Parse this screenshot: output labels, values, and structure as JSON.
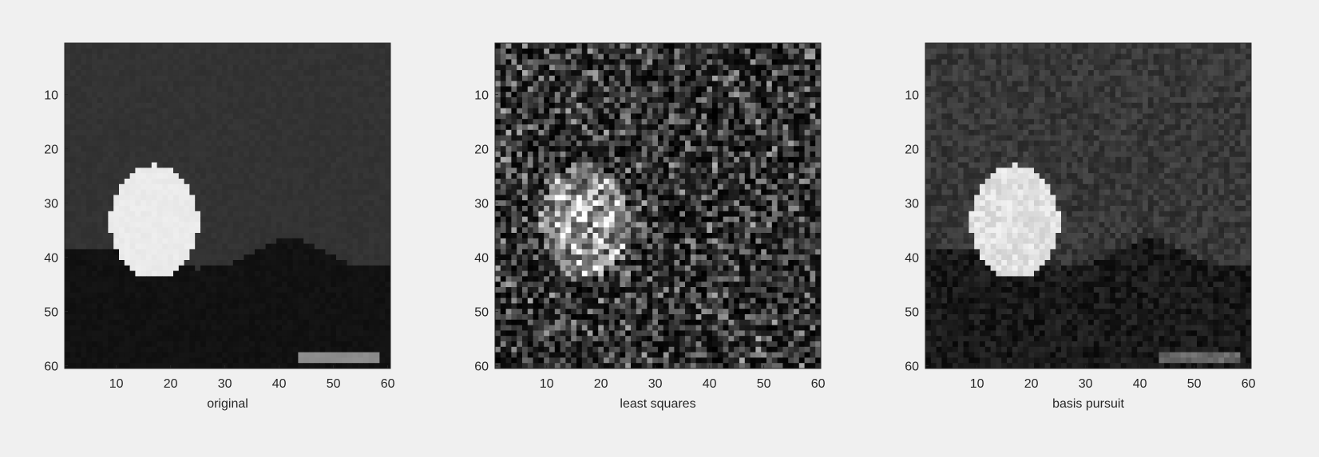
{
  "chart_data": [
    {
      "type": "heatmap",
      "xlabel": "original",
      "colormap": "gray",
      "noise": "low",
      "xlim": [
        0.5,
        60.5
      ],
      "ylim": [
        0.5,
        60.5
      ],
      "yreversed": true,
      "xticks": [
        10,
        20,
        30,
        40,
        50,
        60
      ],
      "yticks": [
        10,
        20,
        30,
        40,
        50,
        60
      ],
      "scene": {
        "background": 0.2,
        "ground": 0.07,
        "moon": 0.92,
        "bar": 0.55
      }
    },
    {
      "type": "heatmap",
      "xlabel": "least squares",
      "colormap": "gray",
      "noise": "high",
      "xlim": [
        0.5,
        60.5
      ],
      "ylim": [
        0.5,
        60.5
      ],
      "yreversed": true,
      "xticks": [
        10,
        20,
        30,
        40,
        50,
        60
      ],
      "yticks": [
        10,
        20,
        30,
        40,
        50,
        60
      ],
      "scene": {
        "background": 0.2,
        "ground": 0.2,
        "moon": 0.6,
        "bar": 0.2
      }
    },
    {
      "type": "heatmap",
      "xlabel": "basis pursuit",
      "colormap": "gray",
      "noise": "medium",
      "xlim": [
        0.5,
        60.5
      ],
      "ylim": [
        0.5,
        60.5
      ],
      "yreversed": true,
      "xticks": [
        10,
        20,
        30,
        40,
        50,
        60
      ],
      "yticks": [
        10,
        20,
        30,
        40,
        50,
        60
      ],
      "scene": {
        "background": 0.22,
        "ground": 0.1,
        "moon": 0.88,
        "bar": 0.4
      }
    }
  ]
}
